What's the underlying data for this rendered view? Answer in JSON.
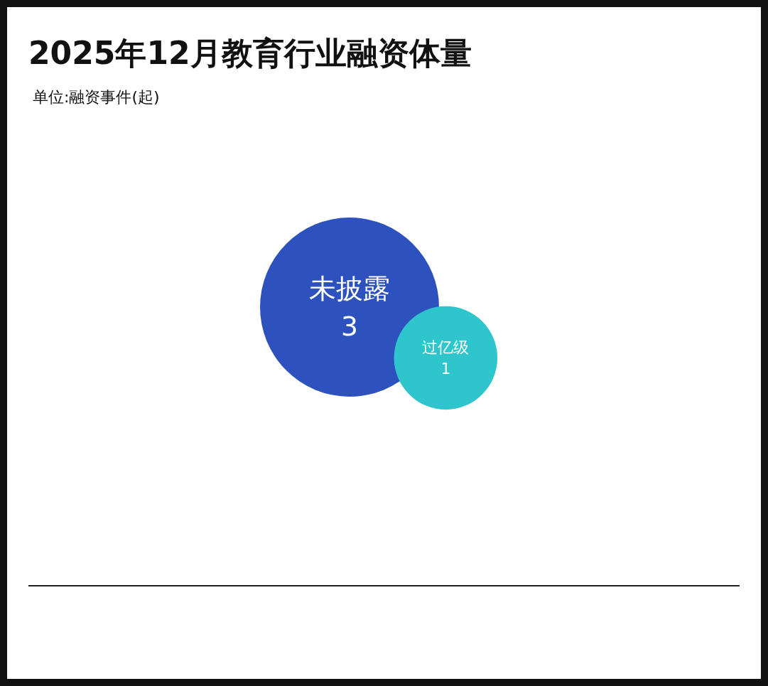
{
  "chart_data": {
    "type": "other",
    "title": "2025年12月教育行业融资体量",
    "subtitle": "单位:融资事件(起)",
    "categories": [
      "未披露",
      "过亿级"
    ],
    "values": [
      3,
      1
    ],
    "colors": [
      "#2d52be",
      "#2ec5cc"
    ],
    "data_labels": true
  }
}
